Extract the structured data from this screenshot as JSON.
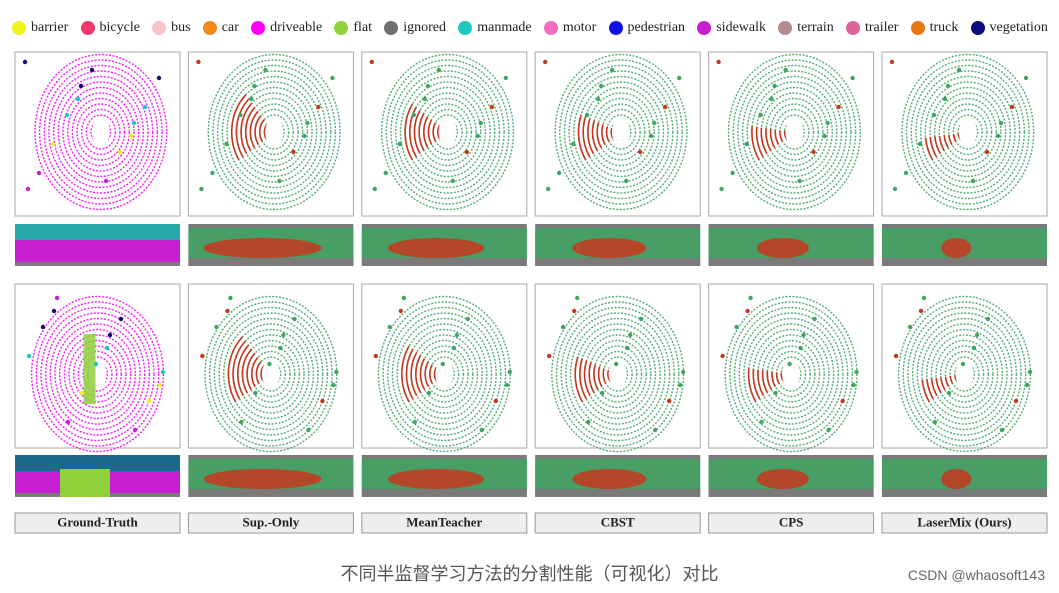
{
  "legend": [
    {
      "label": "barrier",
      "color": "#f2f21c"
    },
    {
      "label": "bicycle",
      "color": "#f0386a"
    },
    {
      "label": "bus",
      "color": "#f6c3c8"
    },
    {
      "label": "car",
      "color": "#f08a1c"
    },
    {
      "label": "driveable",
      "color": "#ff00ff"
    },
    {
      "label": "flat",
      "color": "#8ed13a"
    },
    {
      "label": "ignored",
      "color": "#707070"
    },
    {
      "label": "manmade",
      "color": "#1ec8c0"
    },
    {
      "label": "motor",
      "color": "#f26ec0"
    },
    {
      "label": "pedestrian",
      "color": "#1010e6"
    },
    {
      "label": "sidewalk",
      "color": "#c81ed2"
    },
    {
      "label": "terrain",
      "color": "#b48c8c"
    },
    {
      "label": "trailer",
      "color": "#e0649c"
    },
    {
      "label": "truck",
      "color": "#e87814"
    },
    {
      "label": "vegetation",
      "color": "#0a0a7a"
    }
  ],
  "columns": [
    "Ground-Truth",
    "Sup.-Only",
    "MeanTeacher",
    "CBST",
    "CPS",
    "LaserMix (Ours)"
  ],
  "caption": "不同半监督学习方法的分割性能（可视化）对比",
  "watermark": "CSDN @whaosoft143"
}
